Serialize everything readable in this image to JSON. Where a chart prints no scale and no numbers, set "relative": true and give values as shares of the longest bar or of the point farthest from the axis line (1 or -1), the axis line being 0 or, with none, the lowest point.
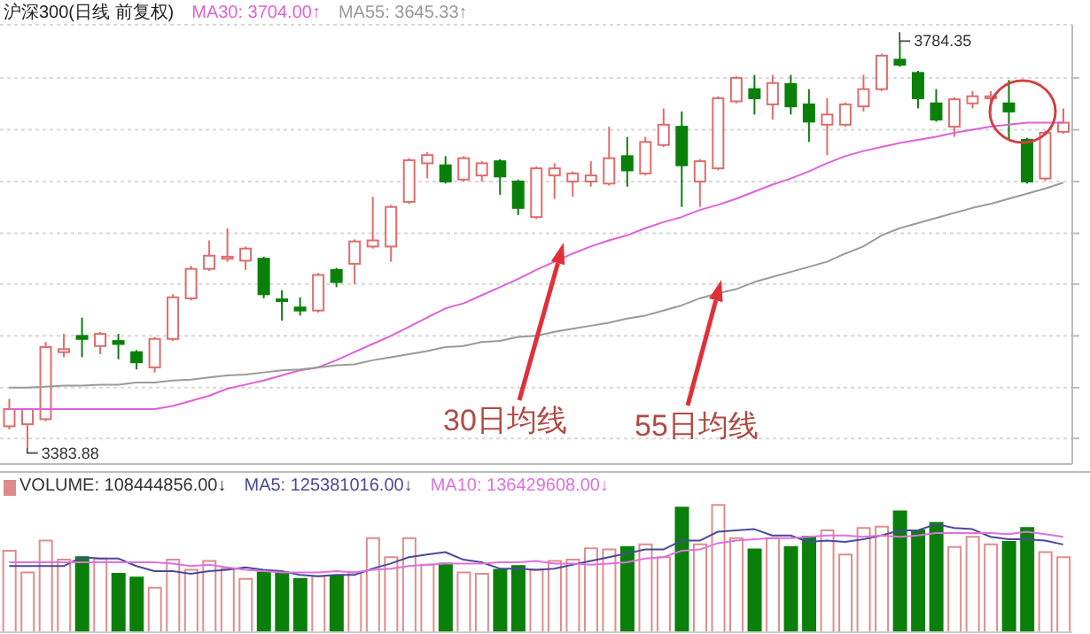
{
  "chart_data": [
    {
      "type": "candlestick",
      "title": "沪深300(日线 前复权)",
      "categories": [
        null,
        null,
        null,
        null,
        null,
        null,
        null,
        null,
        null,
        null,
        null,
        null,
        null,
        null,
        null,
        null,
        null,
        null,
        null,
        null,
        null,
        null,
        null,
        null,
        null,
        null,
        null,
        null,
        null,
        null,
        null,
        null,
        null,
        null,
        null,
        null,
        null,
        null,
        null,
        null,
        null,
        null,
        null,
        null,
        null,
        null,
        null,
        null,
        null,
        null,
        null,
        null,
        null,
        null,
        null,
        null,
        null,
        null,
        null
      ],
      "ohlc": [
        [
          3405,
          3432,
          3402,
          3422
        ],
        [
          3407,
          3422,
          3383.88,
          3422
        ],
        [
          3412,
          3488,
          3410,
          3483
        ],
        [
          3478,
          3496,
          3473,
          3481
        ],
        [
          3494,
          3512,
          3473,
          3491
        ],
        [
          3484,
          3498,
          3476,
          3496
        ],
        [
          3489,
          3496,
          3471,
          3486
        ],
        [
          3478,
          3480,
          3461,
          3468
        ],
        [
          3463,
          3493,
          3458,
          3491
        ],
        [
          3491,
          3535,
          3489,
          3532
        ],
        [
          3531,
          3563,
          3529,
          3560
        ],
        [
          3560,
          3588,
          3558,
          3573
        ],
        [
          3570,
          3600,
          3567,
          3572
        ],
        [
          3568,
          3582,
          3559,
          3580
        ],
        [
          3570,
          3572,
          3531,
          3535
        ],
        [
          3530,
          3539,
          3509,
          3529
        ],
        [
          3522,
          3532,
          3514,
          3519
        ],
        [
          3519,
          3556,
          3517,
          3554
        ],
        [
          3559,
          3561,
          3542,
          3547
        ],
        [
          3565,
          3589,
          3545,
          3587
        ],
        [
          3582,
          3631,
          3580,
          3588
        ],
        [
          3582,
          3623,
          3567,
          3621
        ],
        [
          3626,
          3669,
          3624,
          3667
        ],
        [
          3664,
          3675,
          3649,
          3672
        ],
        [
          3662,
          3671,
          3644,
          3646
        ],
        [
          3648,
          3671,
          3646,
          3669
        ],
        [
          3652,
          3666,
          3646,
          3664
        ],
        [
          3666,
          3668,
          3633,
          3651
        ],
        [
          3646,
          3648,
          3613,
          3620
        ],
        [
          3611,
          3661,
          3609,
          3659
        ],
        [
          3652,
          3664,
          3629,
          3659
        ],
        [
          3646,
          3656,
          3631,
          3654
        ],
        [
          3646,
          3666,
          3641,
          3652
        ],
        [
          3644,
          3700,
          3642,
          3669
        ],
        [
          3671,
          3690,
          3641,
          3657
        ],
        [
          3654,
          3690,
          3652,
          3685
        ],
        [
          3682,
          3718,
          3680,
          3702
        ],
        [
          3700,
          3715,
          3621,
          3662
        ],
        [
          3646,
          3668,
          3621,
          3666
        ],
        [
          3659,
          3730,
          3657,
          3728
        ],
        [
          3725,
          3750,
          3723,
          3748
        ],
        [
          3737,
          3751,
          3712,
          3728
        ],
        [
          3722,
          3751,
          3707,
          3743
        ],
        [
          3742,
          3751,
          3712,
          3720
        ],
        [
          3722,
          3737,
          3685,
          3705
        ],
        [
          3702,
          3728,
          3672,
          3712
        ],
        [
          3702,
          3724,
          3700,
          3722
        ],
        [
          3720,
          3751,
          3715,
          3737
        ],
        [
          3737,
          3772,
          3735,
          3770
        ],
        [
          3766,
          3784.35,
          3759,
          3761
        ],
        [
          3753,
          3755,
          3718,
          3728
        ],
        [
          3723,
          3737,
          3705,
          3707
        ],
        [
          3700,
          3729,
          3690,
          3727
        ],
        [
          3723,
          3735,
          3718,
          3730
        ],
        [
          3728,
          3735,
          3715,
          3730
        ],
        [
          3723,
          3746,
          3687,
          3715
        ],
        [
          3687,
          3689,
          3644,
          3646
        ],
        [
          3649,
          3696,
          3647,
          3694
        ],
        [
          3695,
          3718,
          3693,
          3704
        ]
      ],
      "colors": [
        "#e06c6c",
        "#e06c6c",
        "#e06c6c",
        "#e06c6c",
        "#0a800a",
        "#e06c6c",
        "#0a800a",
        "#0a800a",
        "#e06c6c",
        "#e06c6c",
        "#e06c6c",
        "#e06c6c",
        "#e06c6c",
        "#e06c6c",
        "#0a800a",
        "#0a800a",
        "#0a800a",
        "#e06c6c",
        "#0a800a",
        "#e06c6c",
        "#e06c6c",
        "#e06c6c",
        "#e06c6c",
        "#e06c6c",
        "#0a800a",
        "#e06c6c",
        "#e06c6c",
        "#0a800a",
        "#0a800a",
        "#e06c6c",
        "#e06c6c",
        "#e06c6c",
        "#e06c6c",
        "#e06c6c",
        "#0a800a",
        "#e06c6c",
        "#e06c6c",
        "#0a800a",
        "#e06c6c",
        "#e06c6c",
        "#e06c6c",
        "#0a800a",
        "#e06c6c",
        "#0a800a",
        "#0a800a",
        "#e06c6c",
        "#e06c6c",
        "#e06c6c",
        "#e06c6c",
        "#0a800a",
        "#0a800a",
        "#0a800a",
        "#e06c6c",
        "#e06c6c",
        "#e06c6c",
        "#0a800a",
        "#0a800a",
        "#e06c6c",
        "#e06c6c"
      ],
      "series": [
        {
          "name": "MA30: 3704.00↑",
          "type": "line",
          "color": "#e060d8",
          "values": [
            3422,
            3422,
            3422,
            3422,
            3422,
            3422,
            3422,
            3422,
            3422,
            3425,
            3430,
            3435,
            3442,
            3446,
            3450,
            3455,
            3460,
            3463,
            3470,
            3478,
            3486,
            3494,
            3503,
            3512,
            3521,
            3526,
            3534,
            3542,
            3550,
            3559,
            3567,
            3575,
            3582,
            3588,
            3593,
            3600,
            3606,
            3611,
            3618,
            3623,
            3629,
            3636,
            3643,
            3649,
            3656,
            3664,
            3671,
            3676,
            3680,
            3684,
            3687,
            3690,
            3694,
            3697,
            3700,
            3702,
            3704,
            3704,
            3704
          ]
        },
        {
          "name": "MA55: 3645.33↑",
          "type": "line",
          "color": "#9a9a9a",
          "values": [
            3443,
            3443,
            3444,
            3445,
            3445,
            3446,
            3446,
            3448,
            3448,
            3450,
            3451,
            3453,
            3455,
            3456,
            3458,
            3460,
            3461,
            3463,
            3465,
            3466,
            3470,
            3473,
            3476,
            3479,
            3483,
            3484,
            3488,
            3489,
            3493,
            3494,
            3498,
            3501,
            3504,
            3507,
            3511,
            3514,
            3519,
            3524,
            3531,
            3536,
            3540,
            3547,
            3552,
            3557,
            3562,
            3567,
            3575,
            3582,
            3593,
            3600,
            3605,
            3610,
            3615,
            3620,
            3624,
            3629,
            3634,
            3639,
            3645
          ]
        }
      ],
      "yticks": [
        {
          "value": 3748,
          "label": null
        },
        {
          "value": 3697,
          "label": null
        },
        {
          "value": 3646,
          "label": null
        },
        {
          "value": 3595,
          "label": null
        },
        {
          "value": 3545,
          "label": null
        },
        {
          "value": 3494,
          "label": null
        },
        {
          "value": 3443,
          "label": null
        },
        {
          "value": 3393,
          "label": null
        }
      ],
      "grid": "y",
      "legend": "top left",
      "annotations": [
        "30日均线",
        "55日均线",
        "3784.35",
        "3383.88"
      ]
    },
    {
      "type": "bar",
      "relative": true,
      "categories": [
        null,
        null,
        null,
        null,
        null,
        null,
        null,
        null,
        null,
        null,
        null,
        null,
        null,
        null,
        null,
        null,
        null,
        null,
        null,
        null,
        null,
        null,
        null,
        null,
        null,
        null,
        null,
        null,
        null,
        null,
        null,
        null,
        null,
        null,
        null,
        null,
        null,
        null,
        null,
        null,
        null,
        null,
        null,
        null,
        null,
        null,
        null,
        null,
        null,
        null,
        null,
        null,
        null,
        null,
        null,
        null,
        null,
        null,
        null
      ],
      "series": [
        {
          "name": "VOLUME: 108444856.00↓",
          "type": "bar",
          "colors": [
            "#e08c8c",
            "#e08c8c",
            "#e08c8c",
            "#e08c8c",
            "#0a800a",
            "#e08c8c",
            "#0a800a",
            "#0a800a",
            "#e08c8c",
            "#e08c8c",
            "#e08c8c",
            "#e08c8c",
            "#e08c8c",
            "#e08c8c",
            "#0a800a",
            "#0a800a",
            "#0a800a",
            "#e08c8c",
            "#0a800a",
            "#e08c8c",
            "#e08c8c",
            "#e08c8c",
            "#e08c8c",
            "#e08c8c",
            "#0a800a",
            "#e08c8c",
            "#e08c8c",
            "#0a800a",
            "#0a800a",
            "#e08c8c",
            "#e08c8c",
            "#e08c8c",
            "#e08c8c",
            "#e08c8c",
            "#0a800a",
            "#e08c8c",
            "#e08c8c",
            "#0a800a",
            "#e08c8c",
            "#e08c8c",
            "#e08c8c",
            "#0a800a",
            "#e08c8c",
            "#0a800a",
            "#0a800a",
            "#e08c8c",
            "#e08c8c",
            "#e08c8c",
            "#e08c8c",
            "#0a800a",
            "#0a800a",
            "#0a800a",
            "#e08c8c",
            "#e08c8c",
            "#e08c8c",
            "#0a800a",
            "#0a800a",
            "#e08c8c",
            "#e08c8c"
          ],
          "values": [
            0.64,
            0.47,
            0.72,
            0.57,
            0.59,
            0.58,
            0.46,
            0.43,
            0.35,
            0.57,
            0.49,
            0.56,
            0.5,
            0.42,
            0.47,
            0.47,
            0.42,
            0.44,
            0.44,
            0.47,
            0.74,
            0.59,
            0.74,
            0.53,
            0.54,
            0.47,
            0.46,
            0.49,
            0.52,
            0.49,
            0.56,
            0.57,
            0.66,
            0.65,
            0.67,
            0.69,
            0.59,
            0.98,
            0.69,
            1,
            0.74,
            0.65,
            0.74,
            0.67,
            0.75,
            0.8,
            0.61,
            0.82,
            0.83,
            0.95,
            0.8,
            0.86,
            0.67,
            0.75,
            0.69,
            0.71,
            0.82,
            0.63,
            0.59
          ]
        },
        {
          "name": "MA5: 125381016.00↓",
          "type": "line",
          "color": "#4a4a9a",
          "values": [
            0.52,
            0.52,
            0.52,
            0.52,
            0.59,
            0.58,
            0.58,
            0.52,
            0.48,
            0.48,
            0.46,
            0.48,
            0.49,
            0.51,
            0.49,
            0.48,
            0.45,
            0.44,
            0.45,
            0.45,
            0.5,
            0.54,
            0.59,
            0.61,
            0.63,
            0.57,
            0.55,
            0.5,
            0.5,
            0.49,
            0.5,
            0.53,
            0.56,
            0.59,
            0.62,
            0.65,
            0.65,
            0.72,
            0.72,
            0.79,
            0.8,
            0.81,
            0.76,
            0.76,
            0.71,
            0.72,
            0.71,
            0.73,
            0.76,
            0.8,
            0.8,
            0.85,
            0.82,
            0.81,
            0.75,
            0.73,
            0.73,
            0.72,
            0.69
          ]
        },
        {
          "name": "MA10: 136429608.00↓",
          "type": "line",
          "color": "#e070e0",
          "values": [
            0.55,
            0.55,
            0.55,
            0.55,
            0.55,
            0.55,
            0.55,
            0.55,
            0.55,
            0.54,
            0.52,
            0.53,
            0.51,
            0.49,
            0.48,
            0.47,
            0.47,
            0.47,
            0.48,
            0.47,
            0.49,
            0.5,
            0.52,
            0.53,
            0.54,
            0.54,
            0.54,
            0.55,
            0.55,
            0.56,
            0.54,
            0.54,
            0.53,
            0.54,
            0.55,
            0.58,
            0.59,
            0.64,
            0.65,
            0.7,
            0.72,
            0.73,
            0.74,
            0.74,
            0.75,
            0.76,
            0.76,
            0.75,
            0.76,
            0.75,
            0.76,
            0.78,
            0.78,
            0.78,
            0.78,
            0.77,
            0.79,
            0.77,
            0.75
          ]
        }
      ],
      "legend": "top left"
    }
  ]
}
